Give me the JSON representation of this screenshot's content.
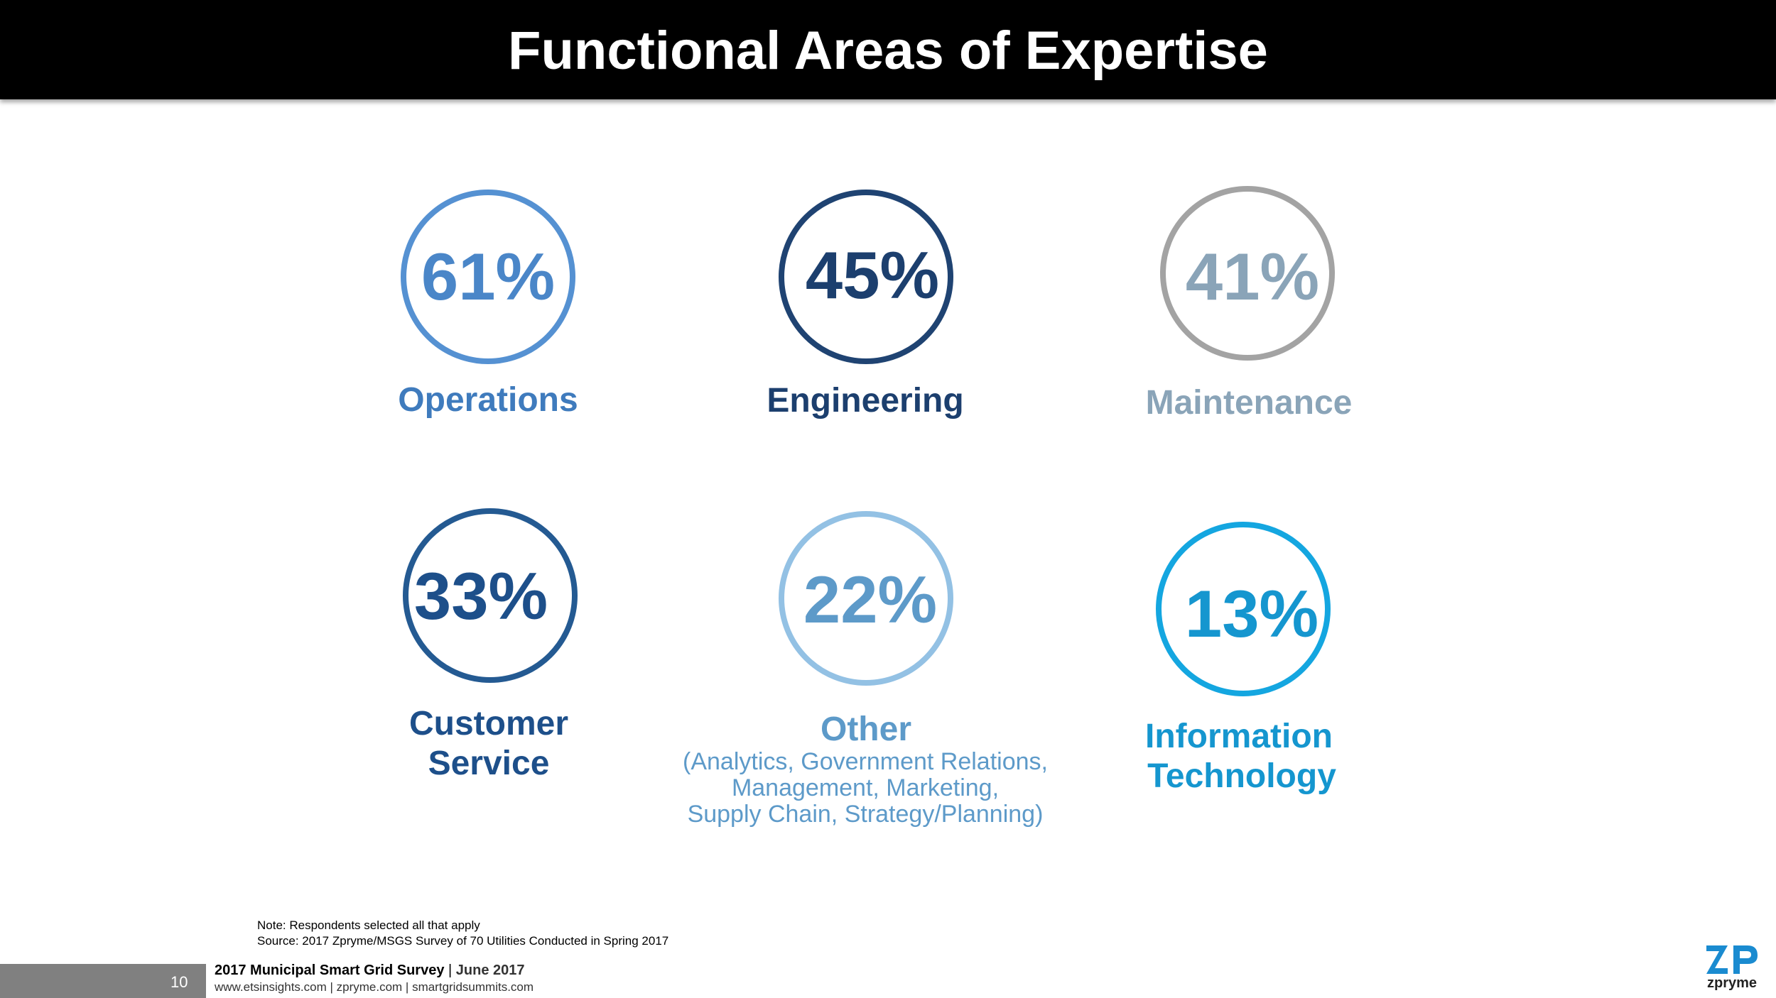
{
  "title": "Functional Areas of Expertise",
  "stats": [
    {
      "percent": "61%",
      "label": "Operations",
      "color": "#4a86c8",
      "ring": "#5591d2"
    },
    {
      "percent": "45%",
      "label": "Engineering",
      "color": "#1c3f6e",
      "ring": "#1f4372"
    },
    {
      "percent": "41%",
      "label": "Maintenance",
      "color": "#8aa4b8",
      "ring": "#a3a3a3"
    },
    {
      "percent": "33%",
      "label_line1": "Customer",
      "label_line2": "Service",
      "color": "#1d4f8a",
      "ring": "#245a92"
    },
    {
      "percent": "22%",
      "label": "Other",
      "sub_line1": "(Analytics, Government Relations,",
      "sub_line2": "Management, Marketing,",
      "sub_line3": "Supply Chain, Strategy/Planning)",
      "color": "#5d9ac9",
      "ring": "#93c1e4"
    },
    {
      "percent": "13%",
      "label_line1": "Information",
      "label_line2": "Technology",
      "color": "#1596cf",
      "ring": "#14a6e0"
    }
  ],
  "notes": {
    "note": "Note: Respondents selected all that apply",
    "source": "Source: 2017 Zpryme/MSGS Survey of 70 Utilities Conducted in Spring 2017"
  },
  "footer": {
    "page_number": "10",
    "survey_name": "2017 Municipal Smart Grid Survey",
    "separator": " | ",
    "date": "June 2017",
    "urls": "www.etsinsights.com | zpryme.com | smartgridsummits.com"
  },
  "logo": {
    "icon": "zpryme-logo-icon",
    "wordmark": "zpryme",
    "color": "#1a8bd0"
  }
}
